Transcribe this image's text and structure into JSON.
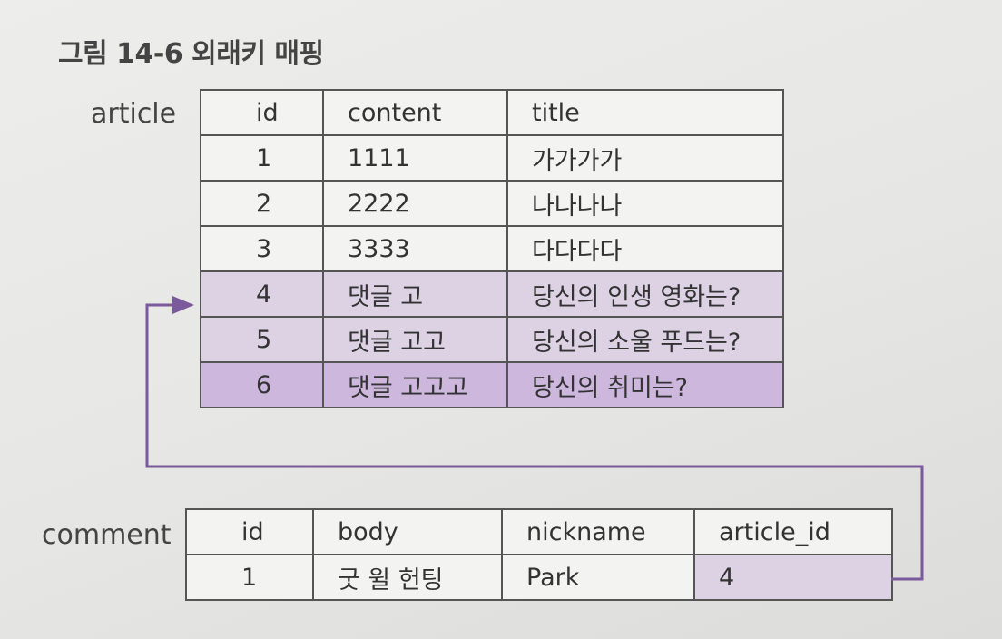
{
  "figure": {
    "title": "그림 14-6 외래키 매핑"
  },
  "article": {
    "label": "article",
    "columns": [
      "id",
      "content",
      "title"
    ],
    "rows": [
      {
        "id": "1",
        "content": "1111",
        "title": "가가가가"
      },
      {
        "id": "2",
        "content": "2222",
        "title": "나나나나"
      },
      {
        "id": "3",
        "content": "3333",
        "title": "다다다다"
      },
      {
        "id": "4",
        "content": "댓글 고",
        "title": "당신의 인생 영화는?"
      },
      {
        "id": "5",
        "content": "댓글 고고",
        "title": "당신의 소울 푸드는?"
      },
      {
        "id": "6",
        "content": "댓글 고고고",
        "title": "당신의 취미는?"
      }
    ]
  },
  "comment": {
    "label": "comment",
    "columns": [
      "id",
      "body",
      "nickname",
      "article_id"
    ],
    "rows": [
      {
        "id": "1",
        "body": "굿 윌 헌팅",
        "nickname": "Park",
        "article_id": "4"
      }
    ]
  },
  "colors": {
    "highlight_light": "#dcd2e4",
    "highlight_strong": "#cdb7dd",
    "arrow": "#7a5a9a"
  },
  "relation": {
    "from": "comment.article_id",
    "to": "article.id"
  }
}
